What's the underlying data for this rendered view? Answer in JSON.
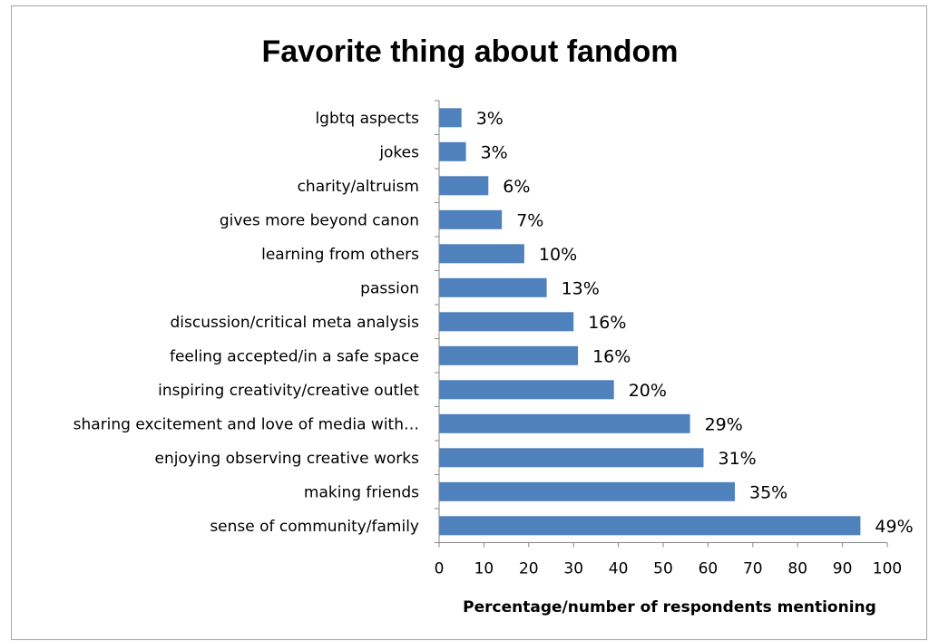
{
  "chart_data": {
    "type": "bar",
    "orientation": "horizontal",
    "title": "Favorite thing about fandom",
    "xlabel": "Percentage/number of respondents mentioning",
    "ylabel": "",
    "xlim": [
      0,
      100
    ],
    "xticks": [
      0,
      10,
      20,
      30,
      40,
      50,
      60,
      70,
      80,
      90,
      100
    ],
    "grid": false,
    "bar_color": "#4f81bd",
    "categories": [
      "lgbtq aspects",
      "jokes",
      "charity/altruism",
      "gives more beyond canon",
      "learning from others",
      "passion",
      "discussion/critical meta analysis",
      "feeling accepted/in a safe space",
      "inspiring creativity/creative outlet",
      "sharing excitement and love of media with…",
      "enjoying observing creative works",
      "making friends",
      "sense of community/family"
    ],
    "values": [
      5,
      6,
      11,
      14,
      19,
      24,
      30,
      31,
      39,
      56,
      59,
      66,
      94
    ],
    "data_labels": [
      "3%",
      "3%",
      "6%",
      "7%",
      "10%",
      "13%",
      "16%",
      "16%",
      "20%",
      "29%",
      "31%",
      "35%",
      "49%"
    ]
  }
}
